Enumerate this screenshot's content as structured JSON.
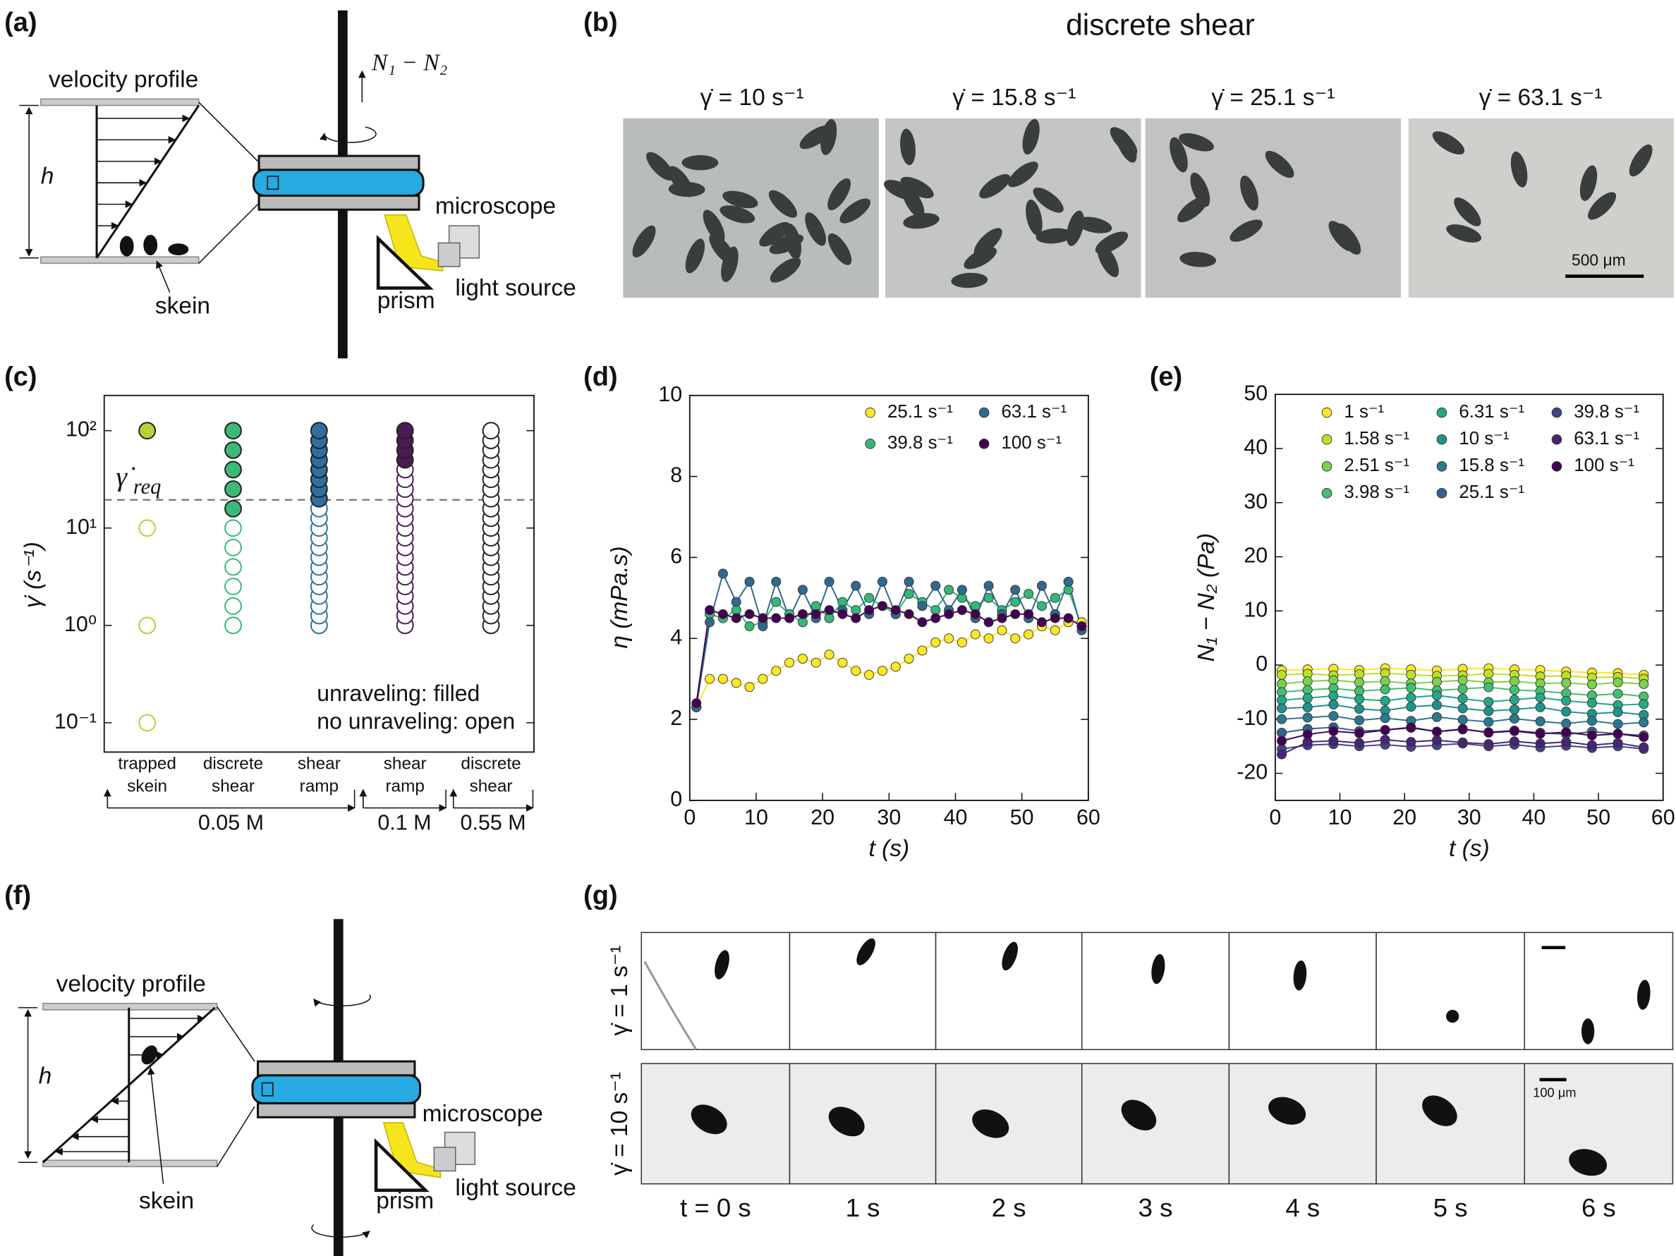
{
  "panels": {
    "a": {
      "label": "(a)",
      "velocity": "velocity profile",
      "h": "h",
      "skein": "skein",
      "force": "N₁ − N₂",
      "microscope": "microscope",
      "prism": "prism",
      "light": "light source"
    },
    "b": {
      "label": "(b)",
      "title": "discrete shear",
      "rates": [
        "γ̇ = 10 s⁻¹",
        "γ̇ = 15.8 s⁻¹",
        "γ̇ = 25.1 s⁻¹",
        "γ̇ = 63.1 s⁻¹"
      ],
      "scale": "500 μm"
    },
    "c": {
      "label": "(c)"
    },
    "d": {
      "label": "(d)"
    },
    "e": {
      "label": "(e)"
    },
    "f": {
      "label": "(f)",
      "velocity": "velocity profile",
      "h": "h",
      "skein": "skein",
      "microscope": "microscope",
      "prism": "prism",
      "light": "light source"
    },
    "g": {
      "label": "(g)",
      "rows": [
        "γ̇ = 1 s⁻¹",
        "γ̇ = 10 s⁻¹"
      ],
      "times": [
        "t = 0 s",
        "1 s",
        "2 s",
        "3 s",
        "4 s",
        "5 s",
        "6 s"
      ],
      "scale": "100 μm"
    }
  },
  "chart_data": [
    {
      "type": "scatter",
      "ylabel": "γ̇ (s⁻¹)",
      "log_y": true,
      "ylim": [
        0.05,
        230
      ],
      "yticks": [
        {
          "value": 0.1,
          "label": "10⁻¹"
        },
        {
          "value": 1,
          "label": "10⁰"
        },
        {
          "value": 10,
          "label": "10¹"
        },
        {
          "value": 100,
          "label": "10²"
        }
      ],
      "categories": [
        "trapped skein",
        "discrete shear",
        "shear ramp",
        "shear ramp",
        "discrete shear"
      ],
      "concentrations": [
        "0.05 M",
        "0.1 M",
        "0.55 M"
      ],
      "threshold": 19.5,
      "threshold_label": "γ̇",
      "threshold_subscript": "req",
      "annotations": [
        "unraveling: filled",
        "no unraveling: open"
      ],
      "series": [
        {
          "color": "#b5d334",
          "values": [
            0.1,
            1,
            10,
            100
          ],
          "filled": [
            false,
            false,
            false,
            true
          ]
        },
        {
          "color": "#3cb878",
          "values": [
            1,
            1.58,
            2.51,
            3.98,
            6.31,
            10,
            15.8,
            25.1,
            39.8,
            63.1,
            100
          ],
          "filled": [
            false,
            false,
            false,
            false,
            false,
            false,
            true,
            true,
            true,
            true,
            true
          ]
        },
        {
          "color": "#2f6f9f",
          "values": [
            1,
            1.26,
            1.58,
            2,
            2.51,
            3.16,
            3.98,
            5.01,
            6.31,
            7.94,
            10,
            12.6,
            15.8,
            20,
            25.1,
            31.6,
            39.8,
            50.1,
            63.1,
            79.4,
            100
          ],
          "filled": [
            false,
            false,
            false,
            false,
            false,
            false,
            false,
            false,
            false,
            false,
            false,
            false,
            false,
            true,
            true,
            true,
            true,
            true,
            true,
            true,
            true
          ]
        },
        {
          "color": "#4b1b55",
          "values": [
            1,
            1.26,
            1.58,
            2,
            2.51,
            3.16,
            3.98,
            5.01,
            6.31,
            7.94,
            10,
            12.6,
            15.8,
            20,
            25.1,
            31.6,
            39.8,
            50.1,
            63.1,
            79.4,
            100
          ],
          "filled": [
            false,
            false,
            false,
            false,
            false,
            false,
            false,
            false,
            false,
            false,
            false,
            false,
            false,
            false,
            false,
            false,
            false,
            true,
            true,
            true,
            true
          ]
        },
        {
          "color": "#222222",
          "values": [
            1,
            1.26,
            1.58,
            2,
            2.51,
            3.16,
            3.98,
            5.01,
            6.31,
            7.94,
            10,
            12.6,
            15.8,
            20,
            25.1,
            31.6,
            39.8,
            50.1,
            63.1,
            79.4,
            100
          ],
          "filled": [
            false,
            false,
            false,
            false,
            false,
            false,
            false,
            false,
            false,
            false,
            false,
            false,
            false,
            false,
            false,
            false,
            false,
            false,
            false,
            false,
            false
          ]
        }
      ]
    },
    {
      "type": "line",
      "xlabel": "t (s)",
      "ylabel": "η (mPa.s)",
      "xlim": [
        0,
        60
      ],
      "ylim": [
        0,
        10
      ],
      "xticks": [
        0,
        10,
        20,
        30,
        40,
        50,
        60
      ],
      "yticks": [
        0,
        2,
        4,
        6,
        8,
        10
      ],
      "legend_rows": 2,
      "x": [
        1,
        3,
        5,
        7,
        9,
        11,
        13,
        15,
        17,
        19,
        21,
        23,
        25,
        27,
        29,
        31,
        33,
        35,
        37,
        39,
        41,
        43,
        45,
        47,
        49,
        51,
        53,
        55,
        57,
        59
      ],
      "series": [
        {
          "name": "25.1 s⁻¹",
          "color": "#fde725",
          "values": [
            2.3,
            3.0,
            3.0,
            2.9,
            2.8,
            3.0,
            3.2,
            3.4,
            3.5,
            3.4,
            3.6,
            3.4,
            3.2,
            3.1,
            3.2,
            3.3,
            3.5,
            3.7,
            3.9,
            4.0,
            3.9,
            4.1,
            4.0,
            4.2,
            4.0,
            4.1,
            4.3,
            4.2,
            4.4,
            4.4
          ]
        },
        {
          "name": "39.8 s⁻¹",
          "color": "#35b779",
          "values": [
            2.3,
            4.6,
            4.5,
            4.7,
            4.3,
            4.4,
            4.9,
            4.6,
            4.4,
            4.8,
            4.5,
            4.9,
            4.7,
            5.0,
            4.8,
            4.6,
            5.1,
            4.9,
            4.7,
            5.2,
            5.0,
            4.8,
            5.0,
            4.7,
            4.9,
            5.1,
            4.8,
            5.0,
            5.2,
            4.3
          ]
        },
        {
          "name": "63.1 s⁻¹",
          "color": "#31688e",
          "values": [
            2.3,
            4.4,
            5.6,
            4.9,
            5.4,
            4.3,
            5.4,
            4.5,
            5.2,
            4.5,
            5.4,
            4.7,
            5.3,
            4.6,
            5.4,
            4.6,
            5.4,
            4.8,
            5.3,
            4.7,
            5.2,
            4.5,
            5.3,
            4.6,
            5.2,
            4.5,
            5.3,
            4.6,
            5.4,
            4.2
          ]
        },
        {
          "name": "100 s⁻¹",
          "color": "#440154",
          "values": [
            2.4,
            4.7,
            4.6,
            4.5,
            4.6,
            4.5,
            4.5,
            4.5,
            4.6,
            4.6,
            4.7,
            4.6,
            4.5,
            4.7,
            4.8,
            4.7,
            4.6,
            4.4,
            4.5,
            4.6,
            4.7,
            4.6,
            4.4,
            4.5,
            4.6,
            4.6,
            4.4,
            4.5,
            4.5,
            4.3
          ]
        }
      ]
    },
    {
      "type": "line",
      "xlabel": "t (s)",
      "ylabel": "N₁ − N₂ (Pa)",
      "xlim": [
        0,
        60
      ],
      "ylim": [
        -25,
        50
      ],
      "xticks": [
        0,
        10,
        20,
        30,
        40,
        50,
        60
      ],
      "yticks": [
        -20,
        -10,
        0,
        10,
        20,
        30,
        40,
        50
      ],
      "legend_rows": 4,
      "x": [
        1,
        5,
        9,
        13,
        17,
        21,
        25,
        29,
        33,
        37,
        41,
        45,
        49,
        53,
        57
      ],
      "series": [
        {
          "name": "1 s⁻¹",
          "color": "#fde725",
          "values": [
            -1,
            -0.8,
            -0.7,
            -0.9,
            -0.6,
            -0.8,
            -1,
            -0.7,
            -0.6,
            -0.8,
            -0.9,
            -1.2,
            -1.4,
            -1.5,
            -1.8
          ]
        },
        {
          "name": "1.58 s⁻¹",
          "color": "#bddf26",
          "values": [
            -1.8,
            -1.6,
            -1.9,
            -1.7,
            -1.5,
            -1.8,
            -2,
            -1.9,
            -1.6,
            -1.8,
            -2.1,
            -2,
            -2.3,
            -2.2,
            -2.5
          ]
        },
        {
          "name": "2.51 s⁻¹",
          "color": "#7ad151",
          "values": [
            -3.5,
            -3,
            -2.8,
            -3.2,
            -3,
            -3.4,
            -3.1,
            -2.8,
            -3.2,
            -3,
            -3.4,
            -3.3,
            -3.6,
            -3.2,
            -3.5
          ]
        },
        {
          "name": "3.98 s⁻¹",
          "color": "#44bf70",
          "values": [
            -5,
            -4.6,
            -4.3,
            -4.8,
            -4.5,
            -4.2,
            -4.7,
            -4.4,
            -4.1,
            -4.6,
            -4.8,
            -5.2,
            -5.6,
            -5.3,
            -5.8
          ]
        },
        {
          "name": "6.31 s⁻¹",
          "color": "#22a884",
          "values": [
            -6.5,
            -6.1,
            -5.7,
            -6.3,
            -6.6,
            -6,
            -5.6,
            -6.2,
            -6.8,
            -6.4,
            -6,
            -6.6,
            -7,
            -7.4,
            -7.2
          ]
        },
        {
          "name": "10 s⁻¹",
          "color": "#21918c",
          "values": [
            -8,
            -7.8,
            -7.3,
            -8.1,
            -8.4,
            -7.7,
            -7.4,
            -8,
            -8.5,
            -8.2,
            -7.8,
            -8.6,
            -9,
            -8.7,
            -9.2
          ]
        },
        {
          "name": "15.8 s⁻¹",
          "color": "#2a788e",
          "values": [
            -10,
            -9.7,
            -9.4,
            -10.2,
            -9.8,
            -10.3,
            -9.6,
            -10.1,
            -10.5,
            -9.9,
            -10.4,
            -10.8,
            -10.3,
            -10.9,
            -10.6
          ]
        },
        {
          "name": "25.1 s⁻¹",
          "color": "#355f8d",
          "values": [
            -12.5,
            -11.8,
            -11.5,
            -12.2,
            -12,
            -11.6,
            -12.3,
            -11.9,
            -12.4,
            -12.1,
            -12.5,
            -12.8,
            -12.3,
            -12.7,
            -13
          ]
        },
        {
          "name": "39.8 s⁻¹",
          "color": "#414487",
          "values": [
            -15.5,
            -14.8,
            -14.6,
            -15,
            -14.7,
            -15.1,
            -14.8,
            -14.5,
            -15,
            -14.7,
            -15.2,
            -14.9,
            -15.3,
            -15,
            -15.5
          ]
        },
        {
          "name": "63.1 s⁻¹",
          "color": "#482475",
          "values": [
            -16.5,
            -14.2,
            -14,
            -14.4,
            -13.8,
            -14.2,
            -13.9,
            -14.3,
            -14.6,
            -14.1,
            -14.5,
            -14.2,
            -14.8,
            -14.4,
            -15.2
          ]
        },
        {
          "name": "100 s⁻¹",
          "color": "#440154",
          "values": [
            -14,
            -12.8,
            -12.2,
            -12.6,
            -12,
            -11.5,
            -12.3,
            -11.8,
            -12.5,
            -12.2,
            -12.7,
            -12.4,
            -13,
            -12.7,
            -13.3
          ]
        }
      ]
    }
  ]
}
